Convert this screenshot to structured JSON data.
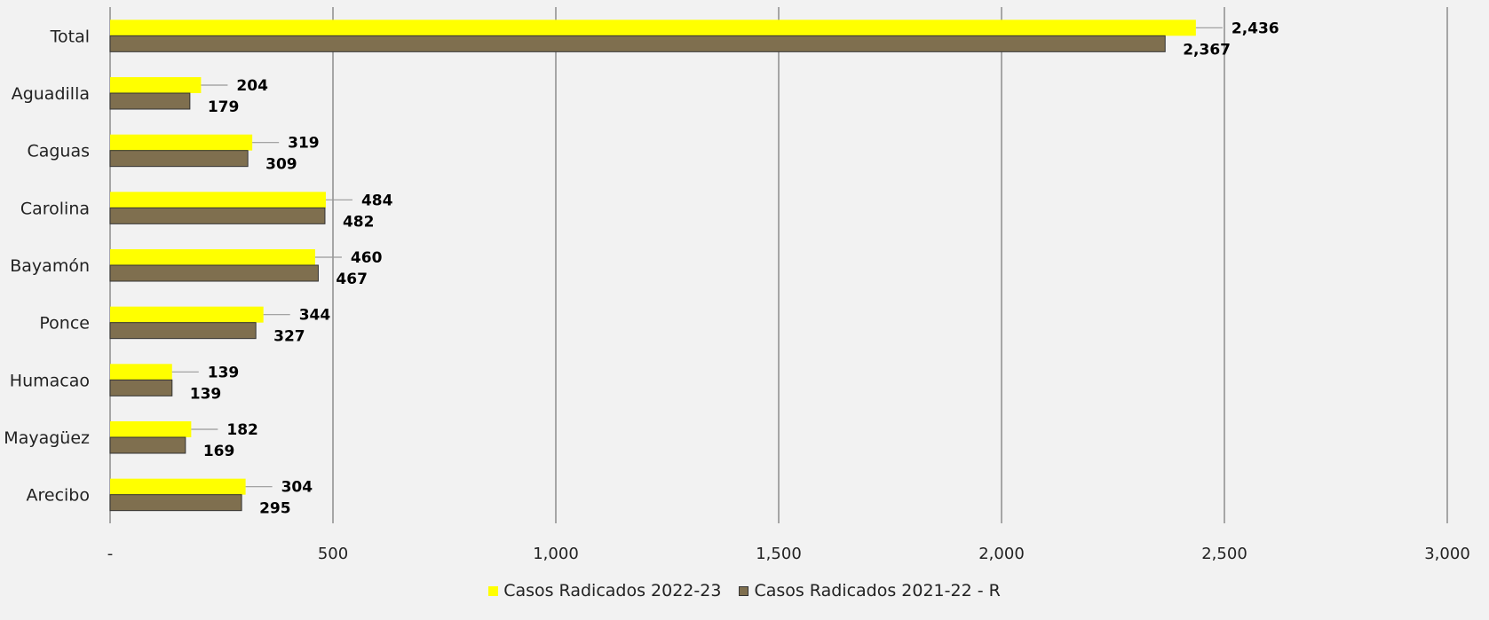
{
  "chart_data": {
    "type": "bar",
    "orientation": "horizontal",
    "categories": [
      "Total",
      "Aguadilla",
      "Caguas",
      "Carolina",
      "Bayamón",
      "Ponce",
      "Humacao",
      "Mayagüez",
      "Arecibo"
    ],
    "series": [
      {
        "name": "Casos Radicados 2022-23",
        "color": "#ffff00",
        "values": [
          2436,
          204,
          319,
          484,
          460,
          344,
          139,
          182,
          304
        ]
      },
      {
        "name": "Casos Radicados 2021-22 - R",
        "color": "#7f6f4f",
        "values": [
          2367,
          179,
          309,
          482,
          467,
          327,
          139,
          169,
          295
        ]
      }
    ],
    "data_labels": [
      [
        "2,436",
        "204",
        "319",
        "484",
        "460",
        "344",
        "139",
        "182",
        "304"
      ],
      [
        "2,367",
        "179",
        "309",
        "482",
        "467",
        "327",
        "139",
        "169",
        "295"
      ]
    ],
    "xlim": [
      0,
      3000
    ],
    "xticks": [
      0,
      500,
      1000,
      1500,
      2000,
      2500,
      3000
    ],
    "xtick_labels": [
      "-",
      "500",
      "1,000",
      "1,500",
      "2,000",
      "2,500",
      "3,000"
    ],
    "grid": "vertical",
    "legend_position": "bottom",
    "title": "",
    "xlabel": "",
    "ylabel": ""
  }
}
